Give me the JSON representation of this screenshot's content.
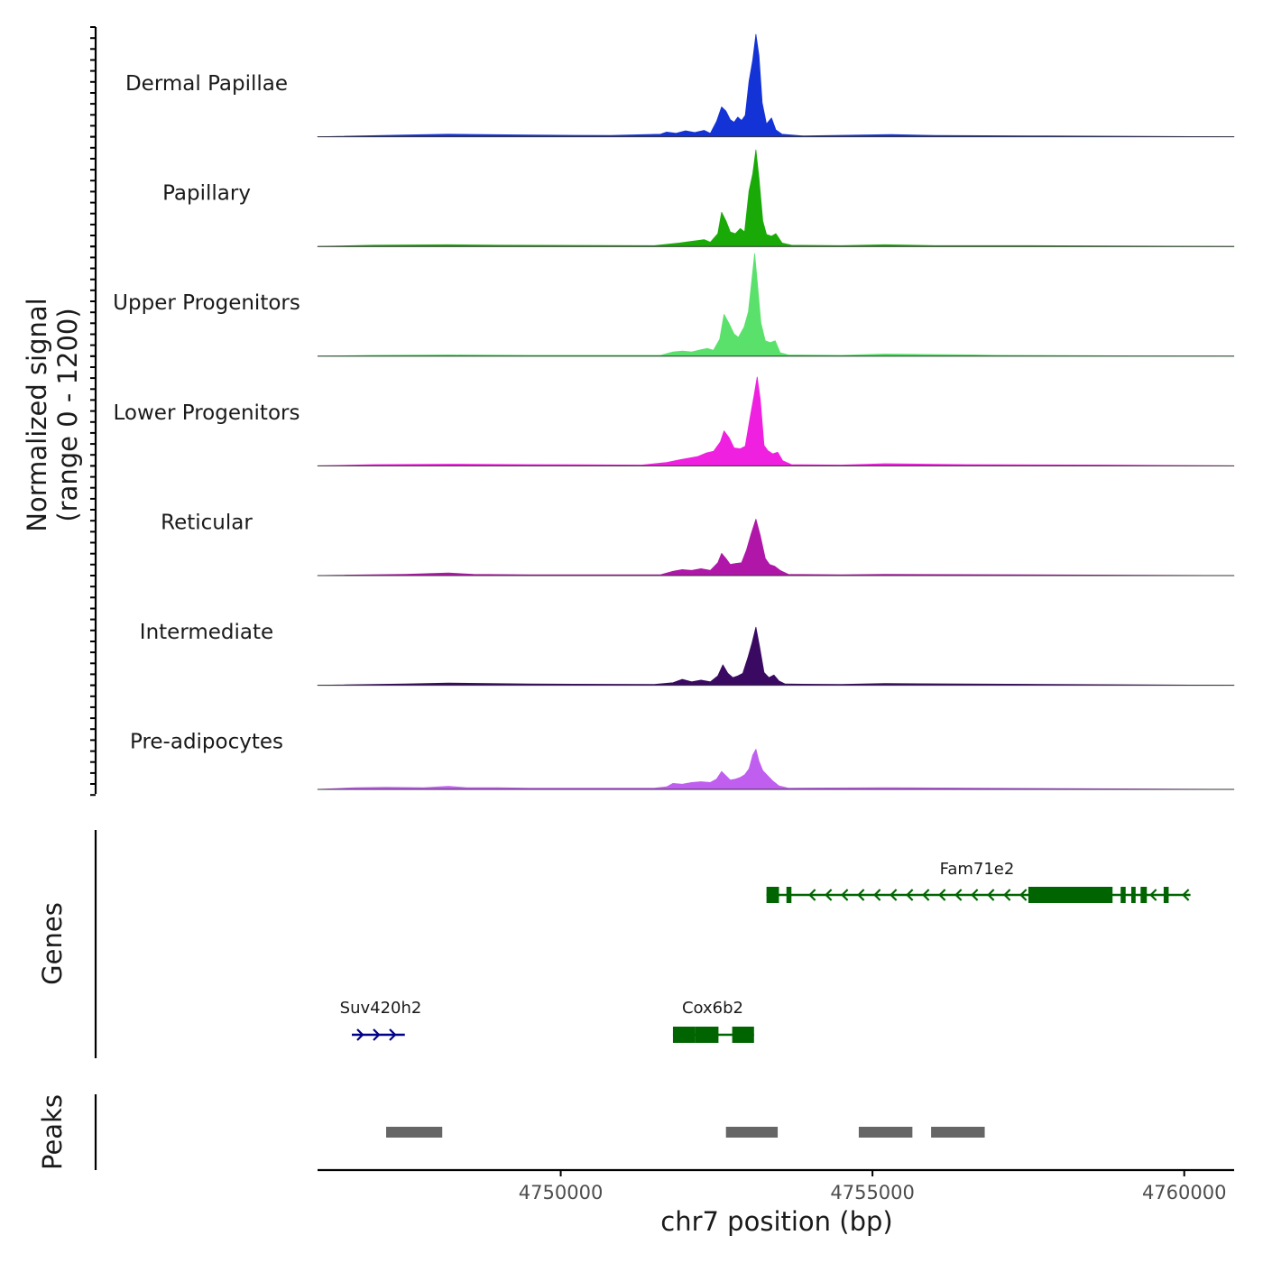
{
  "chart_data": {
    "type": "area",
    "title": "",
    "ylabel": "Normalized signal",
    "ylabel_range": "(range 0 - 1200)",
    "xlabel": "chr7 position (bp)",
    "xlim": [
      4746100,
      4760800
    ],
    "ylim": [
      0,
      1200
    ],
    "x_ticks": [
      4750000,
      4755000,
      4760000
    ],
    "x_tick_labels": [
      "4750000",
      "4755000",
      "4760000"
    ],
    "series": [
      {
        "name": "Dermal Papillae",
        "color": "#1433d6",
        "x": [
          4746100,
          4747500,
          4748200,
          4749500,
          4750800,
          4751600,
          4751700,
          4751850,
          4752000,
          4752150,
          4752300,
          4752400,
          4752500,
          4752580,
          4752650,
          4752720,
          4752780,
          4752840,
          4752900,
          4752960,
          4753020,
          4753080,
          4753130,
          4753180,
          4753230,
          4753300,
          4753380,
          4753450,
          4753550,
          4753700,
          4753900,
          4755300,
          4756000,
          4757800,
          4760800
        ],
        "values": [
          0,
          20,
          30,
          20,
          15,
          30,
          55,
          40,
          70,
          50,
          75,
          40,
          180,
          350,
          300,
          200,
          170,
          230,
          190,
          250,
          650,
          900,
          1200,
          950,
          400,
          150,
          220,
          80,
          30,
          20,
          10,
          25,
          15,
          10,
          0
        ]
      },
      {
        "name": "Papillary",
        "color": "#1aaa08",
        "x": [
          4746100,
          4747000,
          4748200,
          4749000,
          4751500,
          4751900,
          4752100,
          4752300,
          4752400,
          4752520,
          4752580,
          4752650,
          4752720,
          4752800,
          4752880,
          4752950,
          4753020,
          4753080,
          4753130,
          4753180,
          4753240,
          4753300,
          4753380,
          4753450,
          4753550,
          4753700,
          4754500,
          4755200,
          4756000,
          4757500,
          4760800
        ],
        "values": [
          0,
          15,
          20,
          15,
          10,
          40,
          60,
          80,
          50,
          150,
          400,
          300,
          170,
          150,
          210,
          170,
          650,
          850,
          1130,
          800,
          300,
          140,
          120,
          150,
          40,
          15,
          10,
          20,
          10,
          10,
          0
        ]
      },
      {
        "name": "Upper Progenitors",
        "color": "#5ae16b",
        "x": [
          4746100,
          4747000,
          4748200,
          4749500,
          4751600,
          4751800,
          4751950,
          4752100,
          4752250,
          4752350,
          4752450,
          4752550,
          4752620,
          4752700,
          4752780,
          4752850,
          4752940,
          4753010,
          4753060,
          4753110,
          4753160,
          4753210,
          4753280,
          4753360,
          4753440,
          4753520,
          4753650,
          4754500,
          4755200,
          4755800,
          4756600,
          4757000,
          4760800
        ],
        "values": [
          0,
          10,
          15,
          10,
          10,
          50,
          60,
          50,
          75,
          90,
          70,
          200,
          490,
          380,
          260,
          220,
          340,
          520,
          850,
          1200,
          800,
          390,
          180,
          160,
          180,
          40,
          15,
          10,
          25,
          20,
          15,
          10,
          0
        ]
      },
      {
        "name": "Lower Progenitors",
        "color": "#f020e0",
        "x": [
          4746100,
          4747000,
          4748200,
          4749500,
          4751300,
          4751700,
          4751900,
          4752050,
          4752200,
          4752330,
          4752450,
          4752560,
          4752620,
          4752700,
          4752780,
          4752880,
          4752960,
          4753040,
          4753100,
          4753150,
          4753200,
          4753260,
          4753320,
          4753400,
          4753480,
          4753560,
          4753700,
          4754500,
          4755200,
          4756500,
          4758800,
          4760800
        ],
        "values": [
          0,
          15,
          20,
          15,
          10,
          40,
          70,
          90,
          110,
          150,
          170,
          280,
          410,
          330,
          210,
          200,
          230,
          580,
          820,
          1040,
          780,
          240,
          180,
          140,
          160,
          60,
          15,
          10,
          25,
          15,
          10,
          0
        ]
      },
      {
        "name": "Reticular",
        "color": "#b016a8",
        "x": [
          4746100,
          4747500,
          4748200,
          4748600,
          4749500,
          4751600,
          4751800,
          4751950,
          4752100,
          4752250,
          4752400,
          4752520,
          4752580,
          4752650,
          4752720,
          4752800,
          4752900,
          4752980,
          4753050,
          4753130,
          4753200,
          4753280,
          4753350,
          4753430,
          4753520,
          4753650,
          4754500,
          4755200,
          4760800
        ],
        "values": [
          0,
          15,
          30,
          15,
          10,
          10,
          50,
          70,
          60,
          80,
          60,
          150,
          260,
          200,
          130,
          140,
          150,
          300,
          480,
          660,
          470,
          200,
          130,
          110,
          60,
          15,
          10,
          15,
          0
        ]
      },
      {
        "name": "Intermediate",
        "color": "#3a0a62",
        "x": [
          4746100,
          4747500,
          4748200,
          4749500,
          4751500,
          4751800,
          4751950,
          4752100,
          4752250,
          4752400,
          4752520,
          4752600,
          4752680,
          4752760,
          4752840,
          4752920,
          4753000,
          4753070,
          4753130,
          4753190,
          4753260,
          4753340,
          4753420,
          4753500,
          4753600,
          4754500,
          4755200,
          4760800
        ],
        "values": [
          0,
          15,
          25,
          15,
          10,
          30,
          70,
          40,
          60,
          40,
          110,
          240,
          140,
          90,
          110,
          140,
          320,
          500,
          680,
          450,
          150,
          90,
          120,
          50,
          15,
          10,
          20,
          0
        ]
      },
      {
        "name": "Pre-adipocytes",
        "color": "#c05ef0",
        "x": [
          4746100,
          4746700,
          4747200,
          4747800,
          4748200,
          4748500,
          4749000,
          4749500,
          4750200,
          4751000,
          4751500,
          4751700,
          4751800,
          4751950,
          4752100,
          4752250,
          4752400,
          4752500,
          4752580,
          4752650,
          4752720,
          4752800,
          4752880,
          4752950,
          4753020,
          4753080,
          4753130,
          4753180,
          4753240,
          4753320,
          4753400,
          4753500,
          4753650,
          4755200,
          4760800
        ],
        "values": [
          0,
          20,
          25,
          20,
          35,
          20,
          20,
          15,
          15,
          15,
          15,
          30,
          70,
          60,
          80,
          90,
          80,
          120,
          210,
          160,
          110,
          120,
          140,
          170,
          240,
          400,
          470,
          330,
          220,
          160,
          100,
          40,
          15,
          20,
          0
        ]
      }
    ],
    "genes_track": {
      "label": "Genes",
      "genes": [
        {
          "name": "Fam71e2",
          "strand": "-",
          "color": "#006400",
          "start": 4753300,
          "end": 4760100,
          "exons": [
            [
              4753300,
              4753500
            ],
            [
              4753620,
              4753700
            ],
            [
              4757500,
              4758850
            ],
            [
              4758980,
              4759060
            ],
            [
              4759150,
              4759220
            ],
            [
              4759300,
              4759400
            ],
            [
              4759670,
              4759750
            ]
          ]
        },
        {
          "name": "Suv420h2",
          "strand": "+",
          "color": "#00008b",
          "start": 4746650,
          "end": 4747500,
          "exons": []
        },
        {
          "name": "Cox6b2",
          "strand": "-",
          "color": "#006400",
          "start": 4751800,
          "end": 4753100,
          "exons": [
            [
              4751800,
              4752150
            ],
            [
              4752150,
              4752530
            ],
            [
              4752750,
              4753100
            ]
          ]
        }
      ]
    },
    "peaks_track": {
      "label": "Peaks",
      "color": "#666666",
      "peaks": [
        [
          4747200,
          4748100
        ],
        [
          4752650,
          4753480
        ],
        [
          4754780,
          4755640
        ],
        [
          4755940,
          4756800
        ]
      ]
    }
  }
}
